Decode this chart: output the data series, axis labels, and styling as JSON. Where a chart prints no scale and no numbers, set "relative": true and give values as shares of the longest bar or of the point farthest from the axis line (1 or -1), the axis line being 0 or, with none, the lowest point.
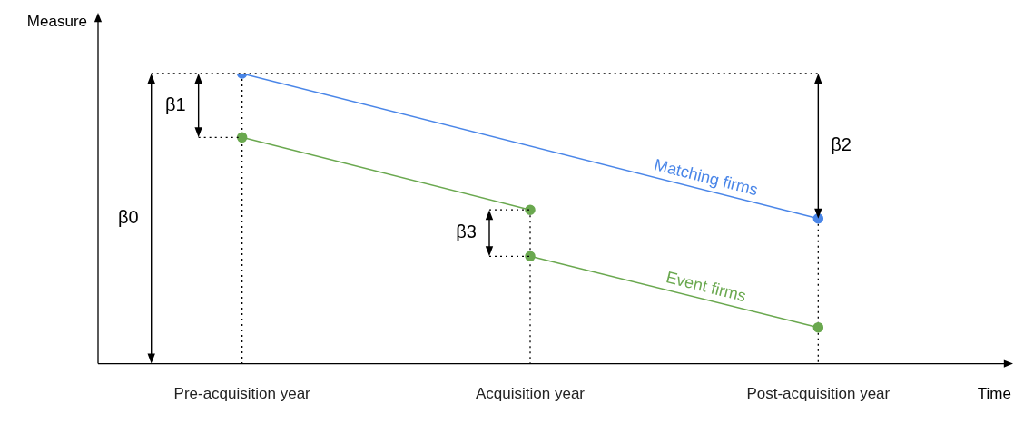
{
  "chart_data": {
    "type": "line",
    "relative": true,
    "xlabel": "Time",
    "ylabel": "Measure",
    "categories": [
      "Pre-acquisition year",
      "Acquisition year",
      "Post-acquisition year"
    ],
    "series": [
      {
        "name": "Matching firms",
        "color": "#4a86e8",
        "values": [
          1,
          null,
          0.5
        ]
      },
      {
        "color": "#6aa84f",
        "values": [
          0.78,
          0.53,
          null
        ]
      },
      {
        "name": "Event firms",
        "color": "#6aa84f",
        "values": [
          null,
          0.37,
          0.125
        ]
      }
    ],
    "ref_lines": [
      {
        "axis": "x",
        "value": "Pre-acquisition year",
        "color": "#000000",
        "line_style": "dotted"
      },
      {
        "axis": "x",
        "value": "Acquisition year",
        "color": "#000000",
        "line_style": "dotted"
      },
      {
        "axis": "x",
        "value": "Post-acquisition year",
        "color": "#000000",
        "line_style": "dotted"
      },
      {
        "axis": "y",
        "value": 1,
        "color": "#000000",
        "line_style": "dotted"
      }
    ],
    "annotations": [
      "β0",
      "β1",
      "β2",
      "β3"
    ],
    "marker": "circle",
    "line_style": "solid",
    "grid": false,
    "legend": false
  }
}
